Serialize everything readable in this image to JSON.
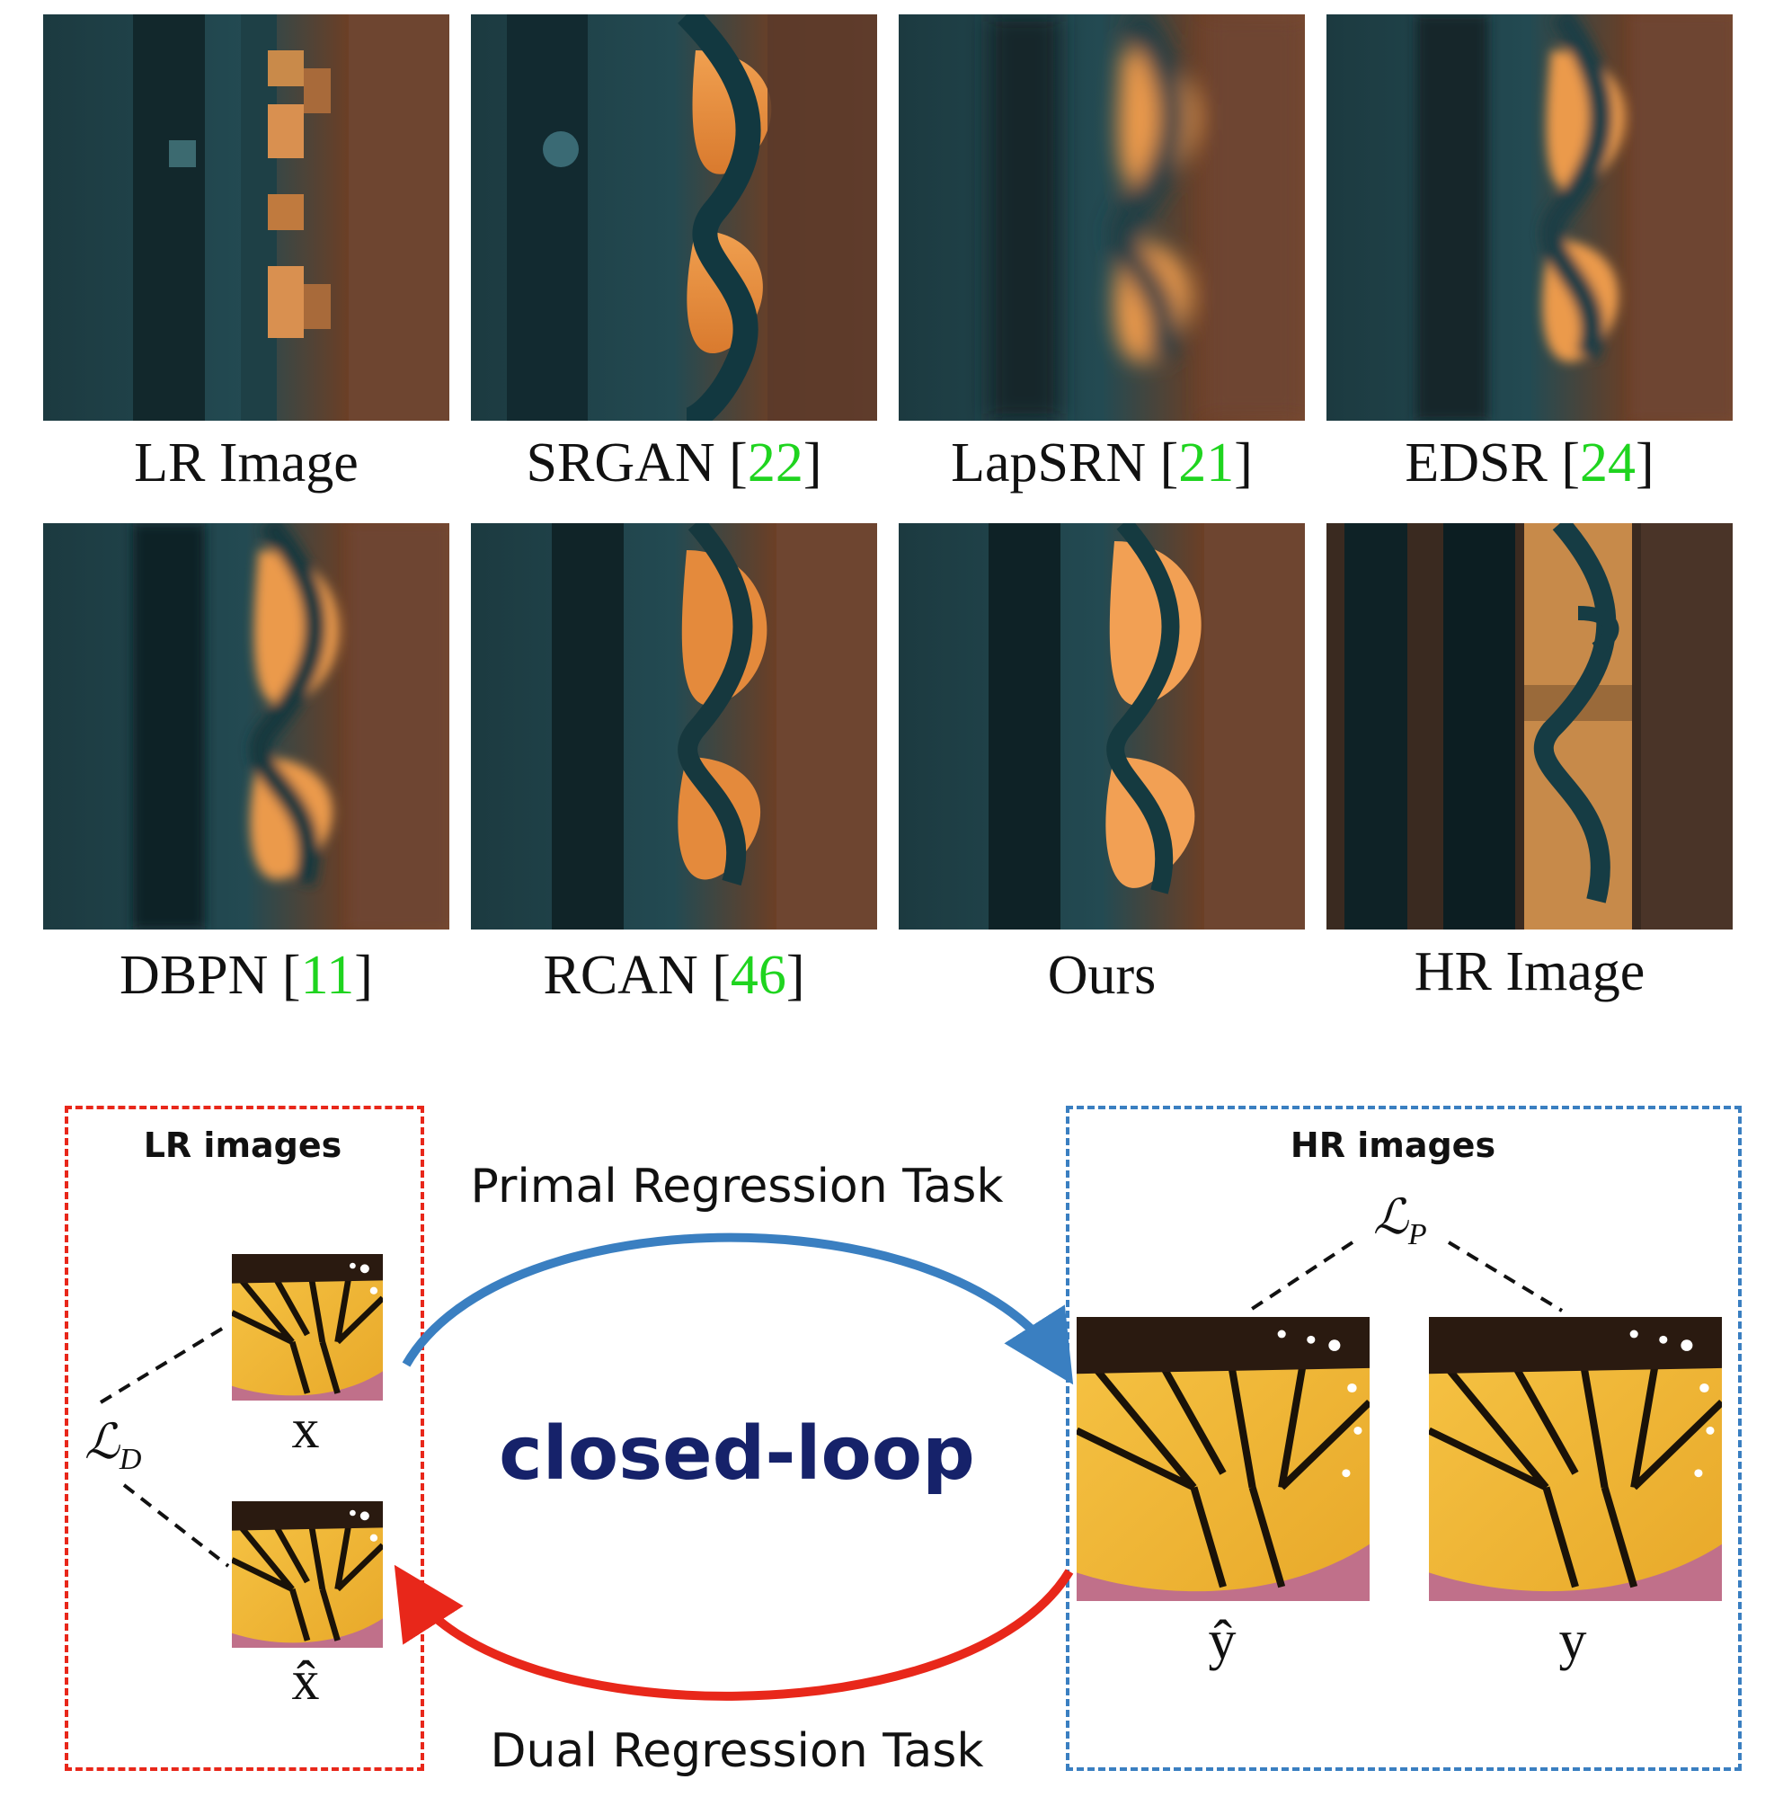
{
  "comparison": {
    "panels": [
      {
        "name": "LR Image",
        "cite": ""
      },
      {
        "name": "SRGAN [",
        "cite": "22"
      },
      {
        "name": "LapSRN [",
        "cite": "21"
      },
      {
        "name": "EDSR [",
        "cite": "24"
      },
      {
        "name": "DBPN [",
        "cite": "11"
      },
      {
        "name": "RCAN [",
        "cite": "46"
      },
      {
        "name": "Ours",
        "cite": ""
      },
      {
        "name": "HR Image",
        "cite": ""
      }
    ],
    "bracket_close": "]"
  },
  "diagram": {
    "lr_box_title": "LR images",
    "hr_box_title": "HR images",
    "primal_task": "Primal Regression Task",
    "dual_task": "Dual Regression Task",
    "loop_label": "closed-loop",
    "loss_p": "ℒ",
    "loss_p_sub": "P",
    "loss_d": "ℒ",
    "loss_d_sub": "D",
    "var_x": "x",
    "var_xhat": "x̂",
    "var_yhat": "ŷ",
    "var_y": "y",
    "colors": {
      "primal_arrow": "#3a7fc1",
      "dual_arrow": "#e8271a",
      "lr_box": "#e8271a",
      "hr_box": "#3a7fc1"
    }
  }
}
